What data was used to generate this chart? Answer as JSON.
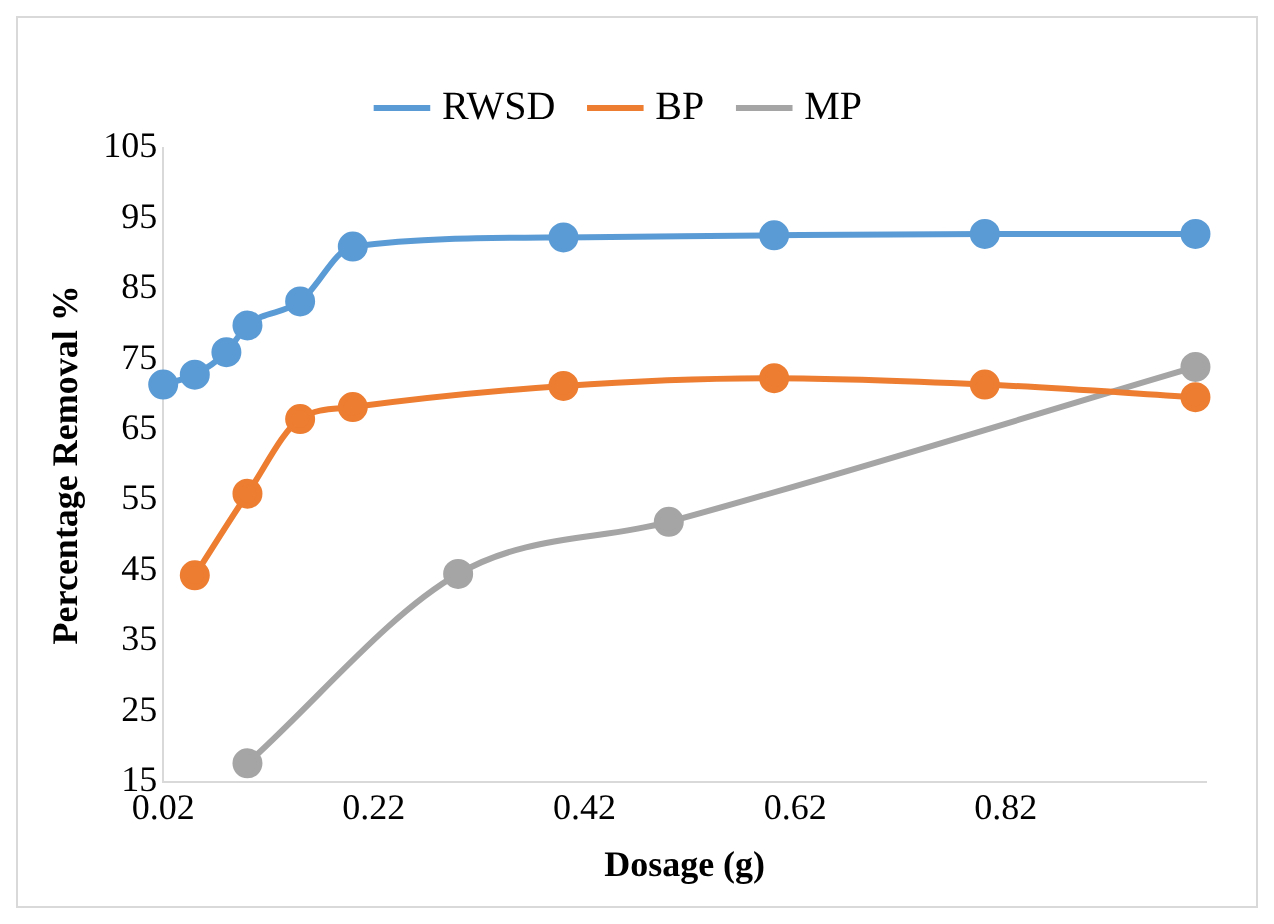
{
  "chart_data": {
    "type": "line",
    "xlabel": "Dosage (g)",
    "ylabel": "Percentage Removal %",
    "xlim": [
      0.02,
      1.01
    ],
    "xticks": [
      0.02,
      0.22,
      0.42,
      0.62,
      0.82
    ],
    "ylim": [
      15,
      105
    ],
    "yticks": [
      15,
      25,
      35,
      45,
      55,
      65,
      75,
      85,
      95,
      105
    ],
    "grid": false,
    "legend": "top",
    "marker": "circle",
    "line_style": "solid",
    "series": [
      {
        "name": "RWSD",
        "color": "#5b9bd5",
        "x": [
          0.02,
          0.05,
          0.08,
          0.1,
          0.15,
          0.2,
          0.4,
          0.6,
          0.8,
          1.0
        ],
        "values": [
          71.4,
          72.8,
          76,
          79.8,
          83.2,
          91,
          92.3,
          92.6,
          92.8,
          92.8
        ]
      },
      {
        "name": "BP",
        "color": "#ed7d31",
        "x": [
          0.05,
          0.1,
          0.15,
          0.2,
          0.4,
          0.6,
          0.8,
          1.0
        ],
        "values": [
          44.3,
          55.9,
          66.5,
          68.2,
          71.2,
          72.3,
          71.4,
          69.6
        ]
      },
      {
        "name": "MP",
        "color": "#a5a5a5",
        "x": [
          0.1,
          0.3,
          0.5,
          1.0
        ],
        "values": [
          17.6,
          44.5,
          51.9,
          73.9
        ]
      }
    ]
  }
}
